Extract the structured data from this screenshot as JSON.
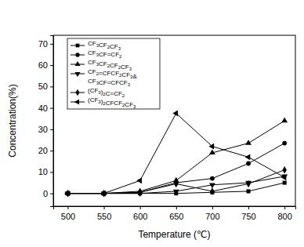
{
  "chart_data": {
    "type": "line",
    "x_label": "Temperature (℃)",
    "y_label": "Concentration(%)",
    "x": [
      500,
      550,
      600,
      650,
      700,
      750,
      800
    ],
    "xlim": [
      480,
      815
    ],
    "xticks": [
      500,
      550,
      600,
      650,
      700,
      750,
      800
    ],
    "ylim": [
      -6,
      74
    ],
    "yticks": [
      0,
      10,
      20,
      30,
      40,
      50,
      60,
      70
    ],
    "legend": "upper left",
    "series": [
      {
        "name": "CF3CF2CF3",
        "color": "#000000",
        "marker": "square",
        "values": [
          0,
          0,
          0,
          0,
          0.5,
          1,
          5
        ]
      },
      {
        "name": "CF3CF=CF2",
        "color": "#000000",
        "marker": "circle",
        "values": [
          0,
          0,
          0.5,
          5,
          7,
          14,
          23.5
        ]
      },
      {
        "name": "CF3CF2CF2CF3",
        "color": "#000000",
        "marker": "triangle-up",
        "values": [
          0,
          0,
          1,
          6,
          19,
          23.5,
          34
        ]
      },
      {
        "name": "CF2=CFCF2CF3&\nCF3CF=CFCF3",
        "color": "#000000",
        "marker": "triangle-down",
        "values": [
          0,
          0,
          0,
          1,
          4,
          5,
          8
        ]
      },
      {
        "name": "(CF3)2C=CF2",
        "color": "#000000",
        "marker": "diamond",
        "values": [
          0,
          0,
          0.5,
          4.5,
          1,
          4.5,
          11
        ]
      },
      {
        "name": "(CF3)2CFCF2CF3",
        "color": "#000000",
        "marker": "triangle-left",
        "values": [
          0,
          0,
          6,
          37.5,
          22,
          17,
          7.5
        ]
      }
    ]
  }
}
